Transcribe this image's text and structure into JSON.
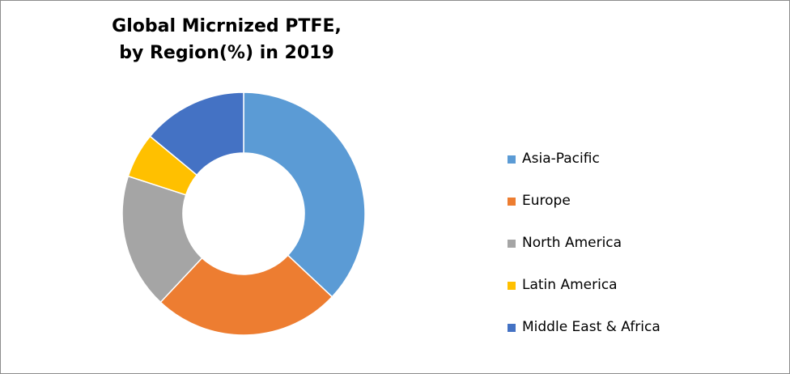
{
  "chart_data": {
    "type": "pie",
    "title": "Global Micrnized PTFE, by Region(%) in 2019",
    "title_lines": [
      "Global Micrnized PTFE,",
      "by Region(%) in 2019"
    ],
    "hole": "donut",
    "legend_position": "right",
    "series": [
      {
        "categories": [
          "Asia-Pacific",
          "Europe",
          "North America",
          "Latin America",
          "Middle East & Africa"
        ],
        "values": [
          37,
          25,
          18,
          6,
          14
        ],
        "colors": [
          "#5B9BD5",
          "#ED7D31",
          "#A5A5A5",
          "#FFC000",
          "#4472C4"
        ]
      }
    ]
  }
}
